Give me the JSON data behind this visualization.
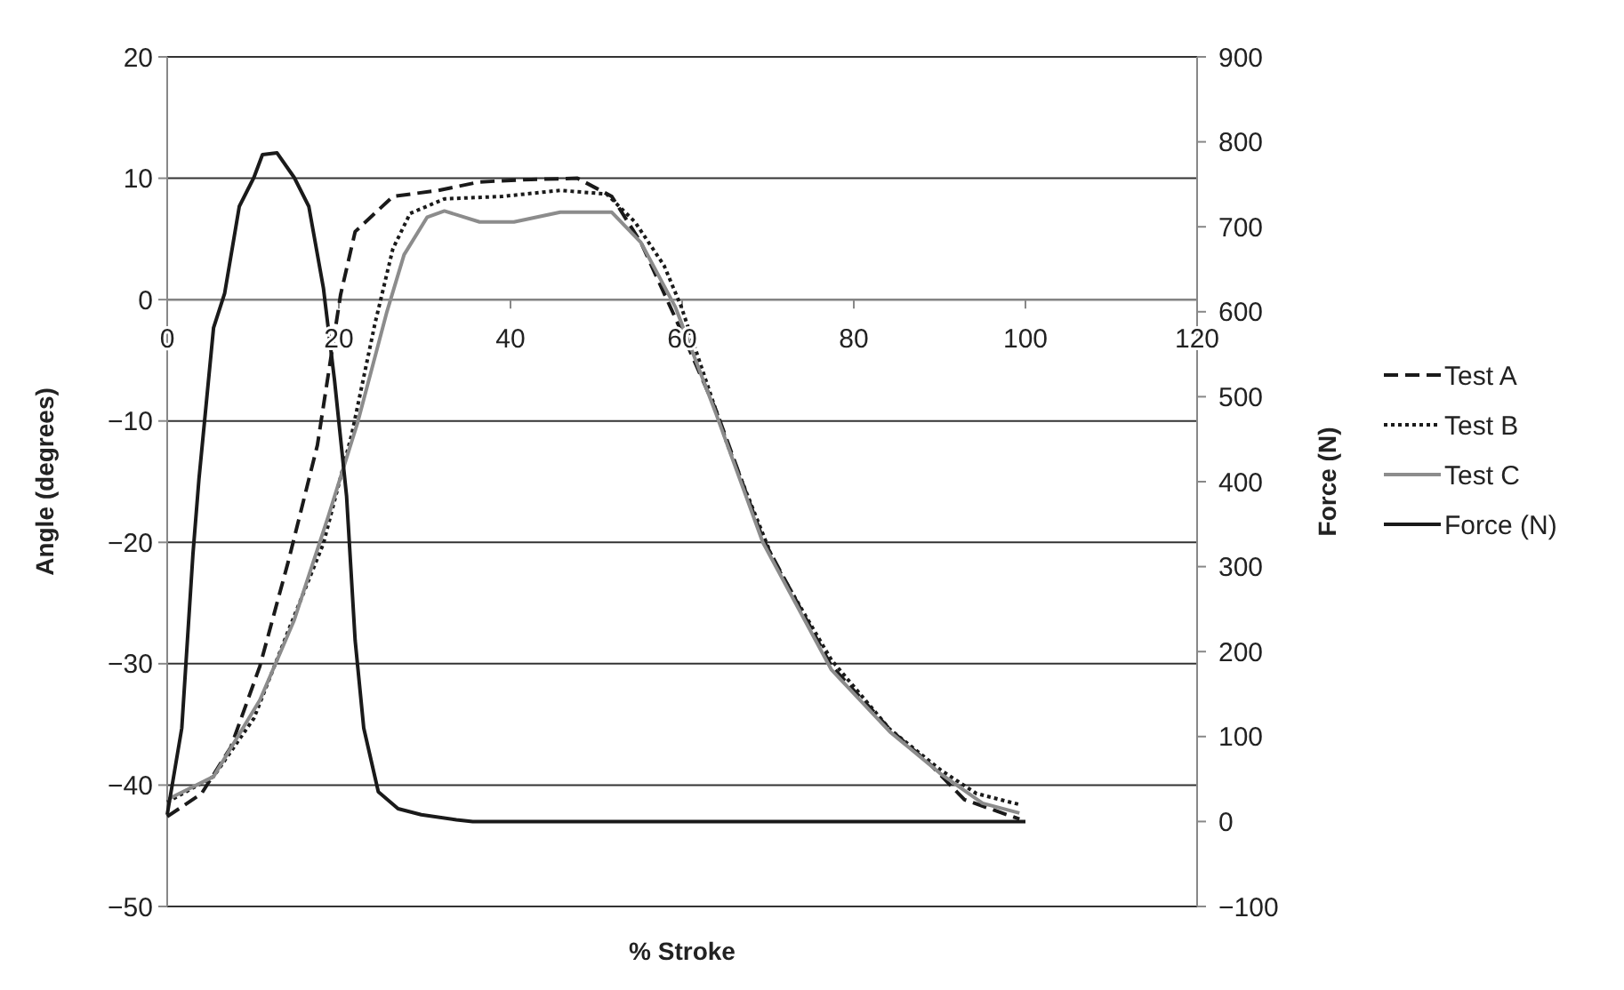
{
  "chart_data": {
    "type": "line",
    "xlabel": "% Stroke",
    "ylabel": "Angle (degrees)",
    "y2label": "Force (N)",
    "xlim": [
      0,
      120
    ],
    "xticks": [
      0,
      20,
      40,
      60,
      80,
      100,
      120
    ],
    "ylim": [
      -50,
      20
    ],
    "yticks": [
      20,
      10,
      0,
      {
        "value": -10,
        "label": "−10"
      },
      {
        "value": -20,
        "label": "−20"
      },
      {
        "value": -30,
        "label": "−30"
      },
      {
        "value": -40,
        "label": "−40"
      },
      {
        "value": -50,
        "label": "−50"
      }
    ],
    "y2lim": [
      -100,
      900
    ],
    "y2ticks": [
      {
        "value": -100,
        "label": "−100"
      },
      0,
      100,
      200,
      300,
      400,
      500,
      600,
      700,
      800,
      900
    ],
    "grid": "y",
    "legend": "right",
    "series": [
      {
        "name": "Test A",
        "color": "#1a1a1a",
        "line_style": "dashed",
        "x": [
          0,
          4.0,
          7.4,
          10.8,
          14.1,
          17.5,
          20.2,
          21.9,
          26.3,
          31.6,
          36.4,
          42.4,
          47.8,
          51.8,
          55.2,
          59.2,
          64.0,
          69.4,
          77.4,
          84.2,
          88.9,
          92.9,
          99.3
        ],
        "values": [
          -42.6,
          -40.7,
          -36.9,
          -30.2,
          -21.6,
          -12.0,
          0.4,
          5.6,
          8.5,
          9.0,
          9.7,
          9.9,
          10.0,
          8.5,
          4.7,
          -1.5,
          -9.2,
          -19.7,
          -30.2,
          -35.4,
          -38.3,
          -41.2,
          -42.8
        ]
      },
      {
        "name": "Test B",
        "color": "#1a1a1a",
        "line_style": "dotted",
        "x": [
          0,
          5.4,
          10.1,
          14.1,
          18.2,
          21.5,
          24.2,
          26.3,
          28.3,
          32.3,
          39.0,
          45.8,
          51.2,
          54.5,
          57.9,
          59.9,
          65.3,
          70.7,
          77.4,
          84.2,
          90.2,
          94.3,
          99.3
        ],
        "values": [
          -41.4,
          -39.3,
          -34.5,
          -27.3,
          -20.1,
          -11.1,
          -2.0,
          4.2,
          7.1,
          8.3,
          8.5,
          9.0,
          8.7,
          6.4,
          2.8,
          -0.6,
          -12.0,
          -21.6,
          -29.7,
          -35.4,
          -38.8,
          -40.7,
          -41.6
        ]
      },
      {
        "name": "Test C",
        "color": "#8c8c8c",
        "line_style": "solid",
        "x": [
          0,
          5.4,
          10.8,
          14.8,
          18.8,
          22.2,
          25.6,
          27.6,
          30.3,
          32.3,
          36.4,
          40.4,
          45.8,
          51.8,
          55.2,
          59.2,
          64.0,
          69.4,
          77.4,
          84.2,
          90.0,
          95.0,
          99.3
        ],
        "values": [
          -41.2,
          -39.3,
          -33.0,
          -26.4,
          -17.8,
          -10.1,
          -1.0,
          3.7,
          6.8,
          7.3,
          6.4,
          6.4,
          7.2,
          7.2,
          4.7,
          -0.6,
          -9.5,
          -20.0,
          -30.5,
          -35.6,
          -39.0,
          -41.5,
          -42.3
        ]
      },
      {
        "name": "Force (N)",
        "color": "#1a1a1a",
        "line_style": "solid",
        "axis": "y2",
        "x": [
          0,
          1.7,
          3.0,
          3.7,
          5.4,
          6.7,
          8.4,
          10.1,
          11.1,
          12.8,
          14.8,
          16.5,
          18.2,
          19.5,
          20.9,
          21.9,
          22.9,
          24.6,
          26.9,
          29.6,
          33.7,
          35.6,
          100
        ],
        "values": [
          8,
          110,
          315,
          403,
          581,
          622,
          724,
          758,
          785,
          787,
          758,
          724,
          628,
          519,
          383,
          213,
          110,
          35,
          15,
          8,
          2,
          0,
          0
        ]
      }
    ]
  }
}
